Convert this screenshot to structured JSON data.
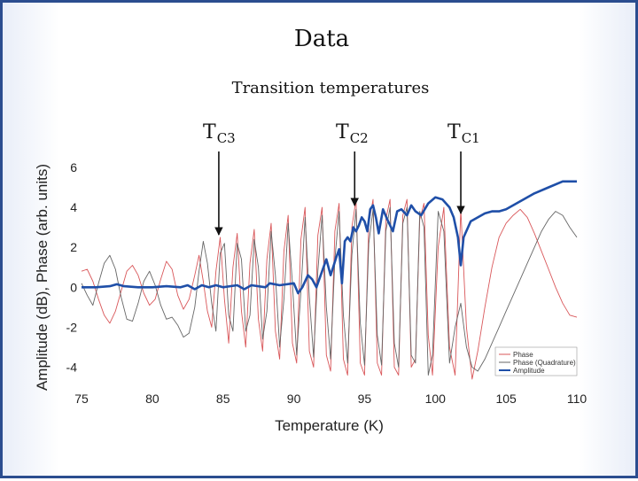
{
  "slide": {
    "title": "Data",
    "subtitle": "Transition temperatures",
    "markers": [
      {
        "base": "T",
        "sub": "C3",
        "temperature": 84.7
      },
      {
        "base": "T",
        "sub": "C2",
        "temperature": 94.3
      },
      {
        "base": "T",
        "sub": "C1",
        "temperature": 101.8
      }
    ]
  },
  "colors": {
    "phase": "#d9575a",
    "quadrature": "#666666",
    "amplitude": "#1f4fa8",
    "frame": "#2b4d8f"
  },
  "chart_data": {
    "type": "line",
    "title": "",
    "xlabel": "Temperature (K)",
    "ylabel": "Amplitude (dB), Phase (arb. units)",
    "xlim": [
      75,
      110
    ],
    "ylim": [
      -5,
      6
    ],
    "xticks": [
      75,
      80,
      85,
      90,
      95,
      100,
      105,
      110
    ],
    "yticks": [
      -4,
      -2,
      0,
      2,
      4,
      6
    ],
    "legend_position": "bottom-right",
    "series": [
      {
        "name": "Phase",
        "color": "#d9575a",
        "x": [
          75,
          75.4,
          75.8,
          76.2,
          76.6,
          77.0,
          77.4,
          77.8,
          78.2,
          78.6,
          79.0,
          79.4,
          79.8,
          80.2,
          80.6,
          81.0,
          81.4,
          81.8,
          82.2,
          82.6,
          83.0,
          83.3,
          83.6,
          83.9,
          84.2,
          84.5,
          84.8,
          85.1,
          85.4,
          85.7,
          86.0,
          86.3,
          86.6,
          86.9,
          87.2,
          87.5,
          87.8,
          88.1,
          88.4,
          88.7,
          89.0,
          89.3,
          89.6,
          89.9,
          90.2,
          90.5,
          90.8,
          91.1,
          91.4,
          91.7,
          92.0,
          92.3,
          92.6,
          92.9,
          93.2,
          93.5,
          93.8,
          94.1,
          94.4,
          94.7,
          95.0,
          95.3,
          95.6,
          95.9,
          96.2,
          96.5,
          96.8,
          97.1,
          97.4,
          97.7,
          98.0,
          98.3,
          98.6,
          98.9,
          99.2,
          99.5,
          99.8,
          100.2,
          100.6,
          101.0,
          101.4,
          101.8,
          102.2,
          102.6,
          103.0,
          103.5,
          104.0,
          104.5,
          105.0,
          105.5,
          106.0,
          106.5,
          107.0,
          107.5,
          108.0,
          108.5,
          109.0,
          109.5,
          110
        ],
        "y": [
          0.8,
          0.9,
          0.3,
          -0.6,
          -1.4,
          -1.8,
          -1.2,
          -0.2,
          0.8,
          1.1,
          0.6,
          -0.3,
          -0.9,
          -0.6,
          0.4,
          1.3,
          0.9,
          -0.4,
          -1.1,
          -0.6,
          0.6,
          1.6,
          0.3,
          -1.2,
          -2.0,
          0.8,
          2.5,
          -0.6,
          -2.8,
          1.0,
          2.7,
          -1.2,
          -3.0,
          1.2,
          2.9,
          -1.6,
          -3.2,
          1.4,
          3.2,
          -2.2,
          -3.6,
          1.8,
          3.6,
          -2.8,
          -3.8,
          2.4,
          4.0,
          -3.2,
          -4.0,
          2.6,
          4.0,
          -3.4,
          -4.2,
          2.8,
          4.2,
          -3.6,
          -4.4,
          3.0,
          4.4,
          -3.8,
          -4.4,
          3.2,
          4.4,
          -3.8,
          -4.4,
          3.4,
          4.4,
          -4.0,
          -4.4,
          3.6,
          4.4,
          -4.0,
          -3.6,
          3.4,
          4.2,
          -2.4,
          -4.4,
          2.0,
          4.0,
          -3.0,
          -4.4,
          3.9,
          -2.0,
          -4.6,
          -3.2,
          -1.0,
          1.0,
          2.5,
          3.2,
          3.6,
          3.9,
          3.5,
          2.7,
          1.8,
          0.9,
          0.0,
          -0.8,
          -1.4,
          -1.5
        ]
      },
      {
        "name": "Phase (Quadrature)",
        "color": "#666666",
        "x": [
          75,
          75.4,
          75.8,
          76.2,
          76.6,
          77.0,
          77.4,
          77.8,
          78.2,
          78.6,
          79.0,
          79.4,
          79.8,
          80.2,
          80.6,
          81.0,
          81.4,
          81.8,
          82.2,
          82.6,
          83.0,
          83.3,
          83.6,
          83.9,
          84.2,
          84.5,
          84.8,
          85.1,
          85.4,
          85.7,
          86.0,
          86.3,
          86.6,
          86.9,
          87.2,
          87.5,
          87.8,
          88.1,
          88.4,
          88.7,
          89.0,
          89.3,
          89.6,
          89.9,
          90.2,
          90.5,
          90.8,
          91.1,
          91.4,
          91.7,
          92.0,
          92.3,
          92.6,
          92.9,
          93.2,
          93.5,
          93.8,
          94.1,
          94.4,
          94.7,
          95.0,
          95.3,
          95.6,
          95.9,
          96.2,
          96.5,
          96.8,
          97.1,
          97.4,
          97.7,
          98.0,
          98.3,
          98.6,
          98.9,
          99.2,
          99.5,
          99.8,
          100.2,
          100.6,
          101.0,
          101.4,
          101.8,
          102.2,
          102.6,
          103.0,
          103.5,
          104.0,
          104.5,
          105.0,
          105.5,
          106.0,
          106.5,
          107.0,
          107.5,
          108.0,
          108.5,
          109.0,
          109.5,
          110
        ],
        "y": [
          0.2,
          -0.4,
          -0.9,
          0.2,
          1.2,
          1.6,
          0.9,
          -0.5,
          -1.6,
          -1.7,
          -0.8,
          0.3,
          0.8,
          0.1,
          -0.9,
          -1.6,
          -1.5,
          -1.9,
          -2.5,
          -2.3,
          -1.0,
          0.8,
          2.3,
          1.2,
          -0.8,
          -2.2,
          1.7,
          2.2,
          -1.4,
          -2.2,
          2.2,
          1.4,
          -2.2,
          -1.4,
          2.4,
          1.0,
          -2.6,
          -1.2,
          2.8,
          0.6,
          -3.0,
          -0.6,
          3.2,
          0.2,
          -3.4,
          -0.2,
          3.5,
          -0.5,
          -3.5,
          0.8,
          3.6,
          -1.0,
          -3.6,
          1.4,
          3.8,
          -1.4,
          -3.8,
          1.6,
          3.9,
          -1.8,
          -3.9,
          2.2,
          3.9,
          -2.4,
          -3.9,
          2.8,
          4.0,
          -2.8,
          -4.0,
          3.2,
          4.0,
          -3.4,
          -3.8,
          3.8,
          3.0,
          -4.4,
          -3.4,
          3.8,
          2.8,
          -3.8,
          -2.0,
          -0.8,
          -3.0,
          -4.0,
          -4.2,
          -3.6,
          -2.8,
          -2.0,
          -1.2,
          -0.4,
          0.4,
          1.2,
          2.0,
          2.8,
          3.4,
          3.8,
          3.6,
          3.0,
          2.5
        ]
      },
      {
        "name": "Amplitude",
        "color": "#1f4fa8",
        "x": [
          75,
          76,
          77,
          77.5,
          78,
          79,
          80,
          81,
          82,
          82.5,
          83,
          83.5,
          84,
          84.5,
          85,
          86,
          86.5,
          87,
          88,
          88.3,
          89,
          90,
          90.3,
          90.6,
          91,
          91.3,
          91.6,
          92,
          92.3,
          92.6,
          93,
          93.2,
          93.4,
          93.6,
          93.8,
          94,
          94.2,
          94.4,
          94.6,
          94.8,
          95,
          95.2,
          95.4,
          95.6,
          95.8,
          96,
          96.3,
          96.6,
          97,
          97.3,
          97.6,
          98,
          98.3,
          98.6,
          99,
          99.5,
          100,
          100.5,
          101,
          101.3,
          101.6,
          101.8,
          102,
          102.5,
          103,
          103.5,
          104,
          104.5,
          105,
          106,
          107,
          108,
          109,
          110
        ],
        "y": [
          0.0,
          0.0,
          0.05,
          0.15,
          0.05,
          0.0,
          0.0,
          0.05,
          0.0,
          0.1,
          -0.1,
          0.1,
          0.0,
          0.1,
          0.0,
          0.1,
          -0.1,
          0.1,
          0.0,
          0.2,
          0.1,
          0.2,
          -0.3,
          0.0,
          0.6,
          0.4,
          0.0,
          0.8,
          1.4,
          0.6,
          1.5,
          1.9,
          0.2,
          2.3,
          2.5,
          2.3,
          3.0,
          2.8,
          3.1,
          3.5,
          3.3,
          2.8,
          3.9,
          4.1,
          3.5,
          2.7,
          3.9,
          3.4,
          2.8,
          3.8,
          3.9,
          3.6,
          4.1,
          3.8,
          3.6,
          4.2,
          4.5,
          4.4,
          4.0,
          3.5,
          2.5,
          1.1,
          2.5,
          3.3,
          3.5,
          3.7,
          3.8,
          3.8,
          3.9,
          4.3,
          4.7,
          5.0,
          5.3,
          5.3
        ]
      }
    ]
  }
}
